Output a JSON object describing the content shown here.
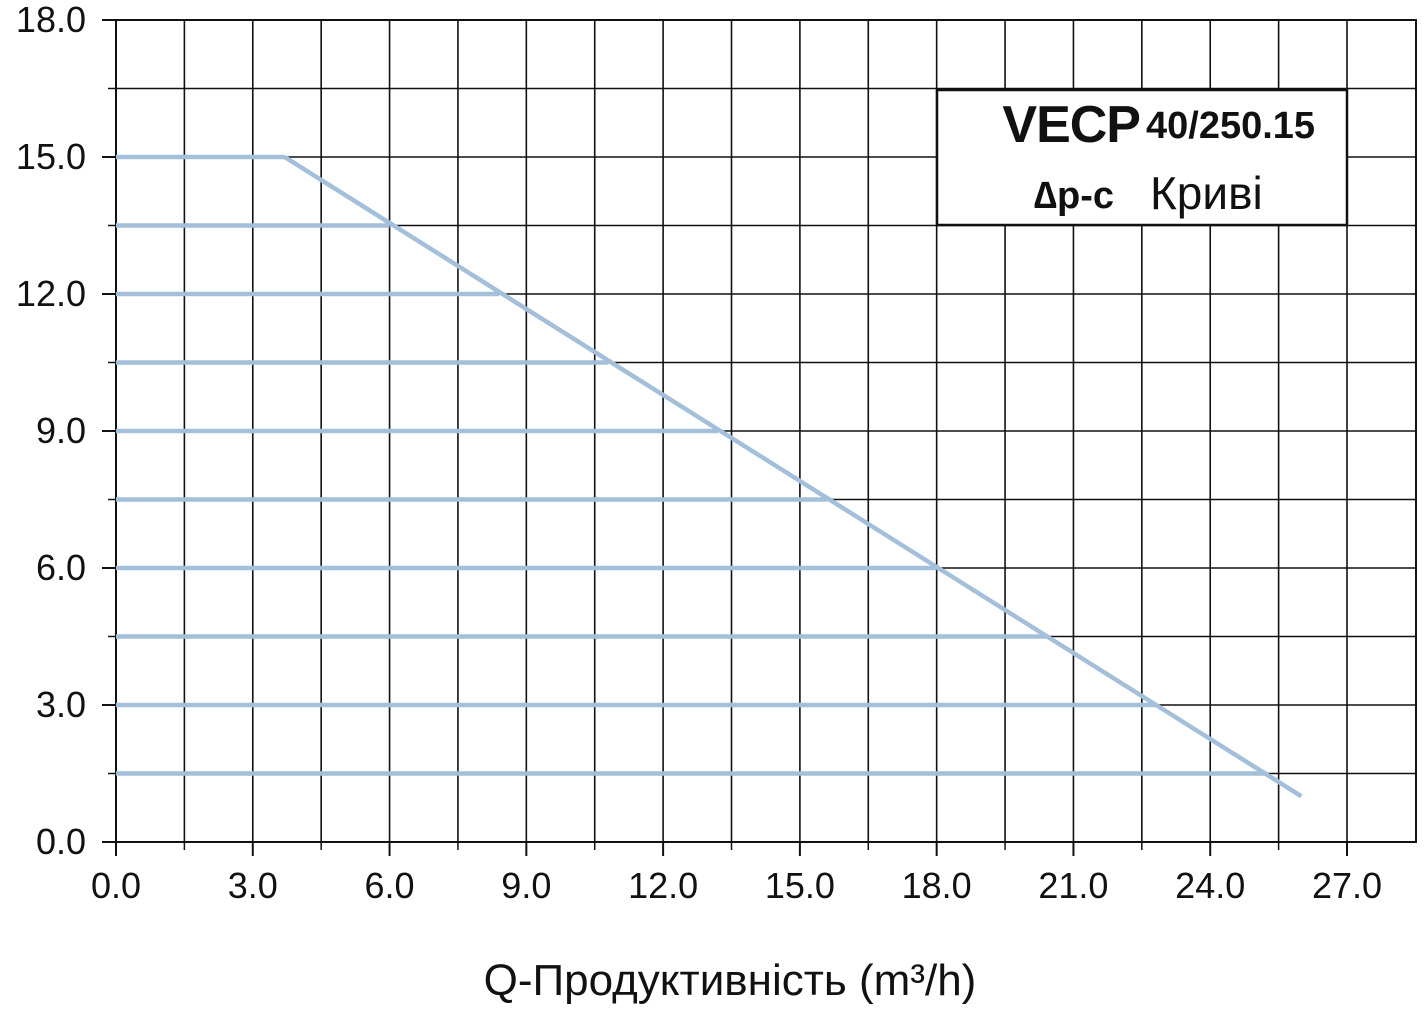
{
  "chart_data": {
    "type": "line",
    "title": "",
    "xlabel": "Q-Продуктивність (m³/h)",
    "ylabel": "",
    "xlim": [
      0,
      28.5
    ],
    "ylim": [
      0,
      18
    ],
    "x_ticks": [
      "0.0",
      "3.0",
      "6.0",
      "9.0",
      "12.0",
      "15.0",
      "18.0",
      "21.0",
      "24.0",
      "27.0"
    ],
    "y_ticks": [
      "0.0",
      "3.0",
      "6.0",
      "9.0",
      "12.0",
      "15.0",
      "18.0"
    ],
    "grid": true,
    "legend": {
      "placement": "top-right",
      "brand": "VECP",
      "model": "40/250.15",
      "mode": "∆p-c",
      "curves_label": "Криві"
    },
    "series_color": "#a3bfd9",
    "series": [
      {
        "x": [
          0,
          3.7
        ],
        "y": [
          15.0,
          15.0
        ]
      },
      {
        "x": [
          0,
          6.0
        ],
        "y": [
          13.5,
          13.5
        ]
      },
      {
        "x": [
          0,
          8.4
        ],
        "y": [
          12.0,
          12.0
        ]
      },
      {
        "x": [
          0,
          10.8
        ],
        "y": [
          10.5,
          10.5
        ]
      },
      {
        "x": [
          0,
          13.2
        ],
        "y": [
          9.0,
          9.0
        ]
      },
      {
        "x": [
          0,
          15.6
        ],
        "y": [
          7.5,
          7.5
        ]
      },
      {
        "x": [
          0,
          18.0
        ],
        "y": [
          6.0,
          6.0
        ]
      },
      {
        "x": [
          0,
          20.4
        ],
        "y": [
          4.5,
          4.5
        ]
      },
      {
        "x": [
          0,
          22.8
        ],
        "y": [
          3.0,
          3.0
        ]
      },
      {
        "x": [
          0,
          25.2
        ],
        "y": [
          1.5,
          1.5
        ]
      },
      {
        "x": [
          3.7,
          26.0
        ],
        "y": [
          15.0,
          1.0
        ]
      }
    ]
  }
}
